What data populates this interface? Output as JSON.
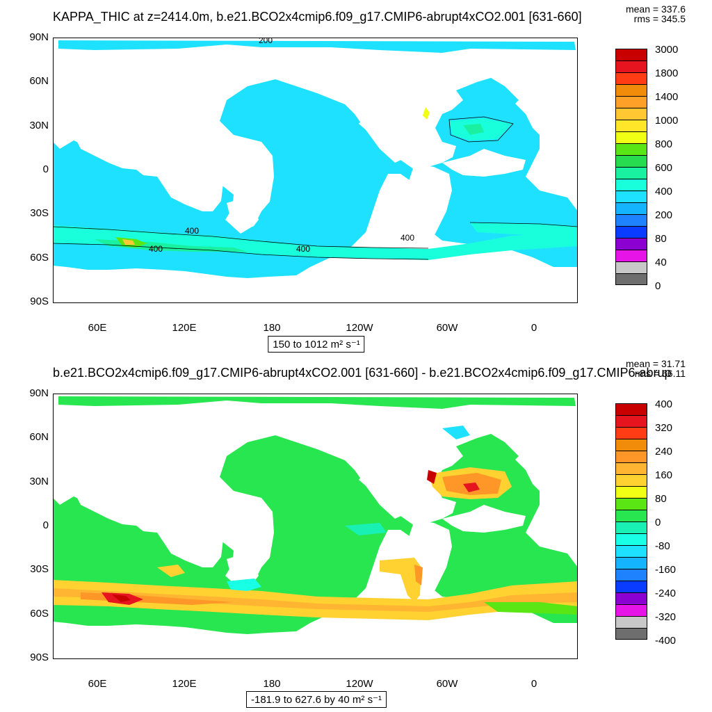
{
  "top": {
    "title": "KAPPA_THIC at z=2414.0m, b.e21.BCO2x4cmip6.f09_g17.CMIP6-abrupt4xCO2.001 [631-660]",
    "mean": "mean = 337.6",
    "rms": "rms = 345.5",
    "range_label": "150 to 1012 m² s⁻¹",
    "contour_labels": [
      "200",
      "400",
      "400",
      "400",
      "400"
    ],
    "colorbar_colors": [
      "#c80000",
      "#e6141e",
      "#ff3c14",
      "#f08c0a",
      "#ffa028",
      "#ffc832",
      "#ffe628",
      "#f0ff14",
      "#5ae614",
      "#28dc50",
      "#19f0a0",
      "#19ffdc",
      "#1ee1ff",
      "#14b4ff",
      "#1e82ff",
      "#0a3cff",
      "#8c00d2",
      "#e614e6",
      "#c8c8c8",
      "#6e6e6e"
    ],
    "colorbar_labels": [
      "3000",
      "1800",
      "1400",
      "1000",
      "800",
      "600",
      "400",
      "200",
      "80",
      "40",
      "0"
    ]
  },
  "bottom": {
    "title": "b.e21.BCO2x4cmip6.f09_g17.CMIP6-abrupt4xCO2.001 [631-660] - b.e21.BCO2x4cmip6.f09_g17.CMIP6-abrup",
    "mean": "mean = 31.71",
    "rms": "rms = 66.11",
    "range_label": "-181.9 to 627.6 by 40 m² s⁻¹",
    "colorbar_colors": [
      "#c80000",
      "#e6141e",
      "#ff3c14",
      "#f08c0a",
      "#ff9628",
      "#ffb432",
      "#ffd232",
      "#f0ff14",
      "#5ae614",
      "#28e650",
      "#19f0b4",
      "#19ffe6",
      "#1ee1ff",
      "#14b4ff",
      "#1e82ff",
      "#0a3cff",
      "#8c00d2",
      "#e614e6",
      "#c8c8c8",
      "#6e6e6e"
    ],
    "colorbar_labels": [
      "400",
      "320",
      "240",
      "160",
      "80",
      "0",
      "-80",
      "-160",
      "-240",
      "-320",
      "-400"
    ]
  },
  "axes": {
    "lat_labels": [
      "90N",
      "60N",
      "30N",
      "0",
      "30S",
      "60S",
      "90S"
    ],
    "lon_labels": [
      "60E",
      "120E",
      "180",
      "120W",
      "60W",
      "0"
    ]
  }
}
